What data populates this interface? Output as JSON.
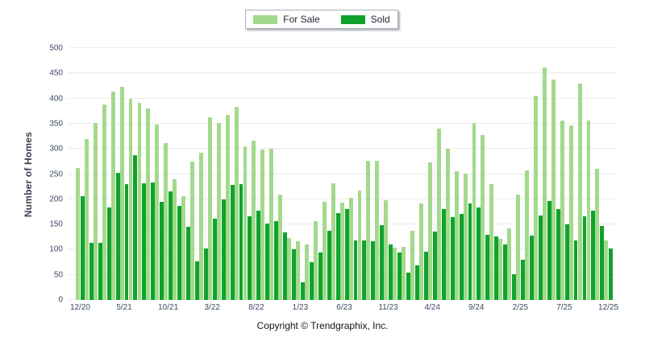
{
  "chart_data": {
    "type": "bar",
    "title": "",
    "xlabel": "",
    "ylabel": "Number of Homes",
    "ylim": [
      0,
      500
    ],
    "y_ticks": [
      0,
      50,
      100,
      150,
      200,
      250,
      300,
      350,
      400,
      450,
      500
    ],
    "x_tick_interval": 5,
    "x_tick_labels": [
      "12/20",
      "5/21",
      "10/21",
      "3/22",
      "8/22",
      "1/23",
      "6/23",
      "11/23",
      "4/24",
      "9/24",
      "2/25",
      "7/25",
      "12/25"
    ],
    "grid": true,
    "legend_position": "top-center",
    "categories": [
      "12/20",
      "1/21",
      "2/21",
      "3/21",
      "4/21",
      "5/21",
      "6/21",
      "7/21",
      "8/21",
      "9/21",
      "10/21",
      "11/21",
      "12/21",
      "1/22",
      "2/22",
      "3/22",
      "4/22",
      "5/22",
      "6/22",
      "7/22",
      "8/22",
      "9/22",
      "10/22",
      "11/22",
      "12/22",
      "1/23",
      "2/23",
      "3/23",
      "4/23",
      "5/23",
      "6/23",
      "7/23",
      "8/23",
      "9/23",
      "10/23",
      "11/23",
      "12/23",
      "1/24",
      "2/24",
      "3/24",
      "4/24",
      "5/24",
      "6/24",
      "7/24",
      "8/24",
      "9/24",
      "10/24",
      "11/24",
      "12/24",
      "1/25",
      "2/25",
      "3/25",
      "4/25",
      "5/25",
      "6/25",
      "7/25",
      "8/25",
      "9/25",
      "10/25",
      "11/25",
      "12/25"
    ],
    "series": [
      {
        "name": "For Sale",
        "color": "#a3d98c",
        "values": [
          262,
          319,
          351,
          388,
          414,
          423,
          400,
          391,
          380,
          348,
          311,
          240,
          206,
          274,
          293,
          363,
          352,
          368,
          384,
          305,
          317,
          299,
          301,
          209,
          123,
          117,
          110,
          156,
          195,
          232,
          193,
          203,
          218,
          277,
          276,
          198,
          104,
          106,
          137,
          192,
          273,
          341,
          301,
          255,
          251,
          351,
          328,
          230,
          122,
          142,
          209,
          258,
          405,
          462,
          438,
          357,
          346,
          429,
          357,
          260,
          118
        ]
      },
      {
        "name": "Sold",
        "color": "#0fa32d",
        "values": [
          206,
          114,
          114,
          183,
          252,
          230,
          288,
          232,
          234,
          195,
          216,
          187,
          146,
          77,
          102,
          162,
          200,
          229,
          230,
          166,
          178,
          152,
          157,
          134,
          101,
          35,
          75,
          95,
          138,
          173,
          180,
          118,
          118,
          117,
          149,
          111,
          94,
          54,
          68,
          96,
          136,
          180,
          165,
          171,
          192,
          184,
          130,
          127,
          110,
          51,
          80,
          128,
          167,
          197,
          180,
          150,
          118,
          166,
          178,
          147,
          102
        ]
      }
    ]
  },
  "legend": {
    "for_sale_label": "For Sale",
    "sold_label": "Sold"
  },
  "footer": {
    "copyright": "Copyright © Trendgraphix, Inc."
  },
  "colors": {
    "for_sale": "#a3d98c",
    "sold": "#0fa32d",
    "gridline": "#ececec",
    "tick_label": "#3f4a64",
    "axis_title": "#39414f"
  }
}
